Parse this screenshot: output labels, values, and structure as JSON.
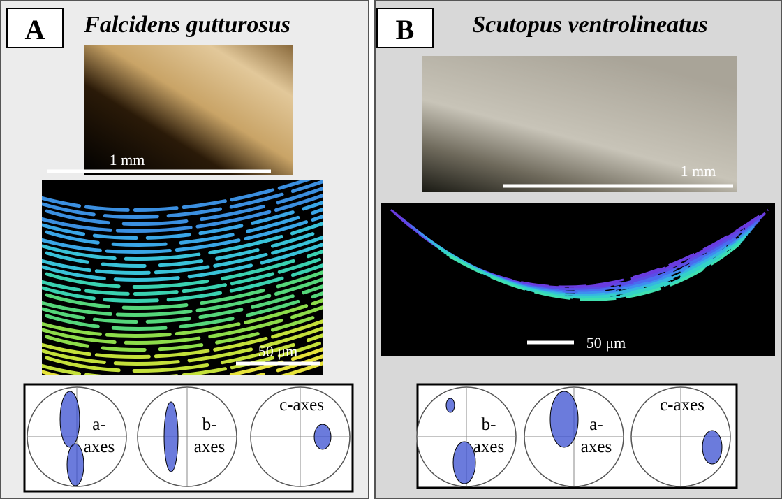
{
  "panels": [
    {
      "label": "A",
      "title": "Falcidens gutturosus",
      "photo_scale": "1 mm",
      "map_scale": "50 μm",
      "pole_figures": [
        {
          "lines": [
            "a-",
            "axes"
          ]
        },
        {
          "lines": [
            "b-",
            "axes"
          ]
        },
        {
          "lines": [
            "c-axes"
          ]
        }
      ]
    },
    {
      "label": "B",
      "title": "Scutopus ventrolineatus",
      "photo_scale": "1 mm",
      "map_scale": "50 μm",
      "pole_figures": [
        {
          "lines": [
            "b-",
            "axes"
          ]
        },
        {
          "lines": [
            "a-",
            "axes"
          ]
        },
        {
          "lines": [
            "c-axes"
          ]
        }
      ]
    }
  ]
}
